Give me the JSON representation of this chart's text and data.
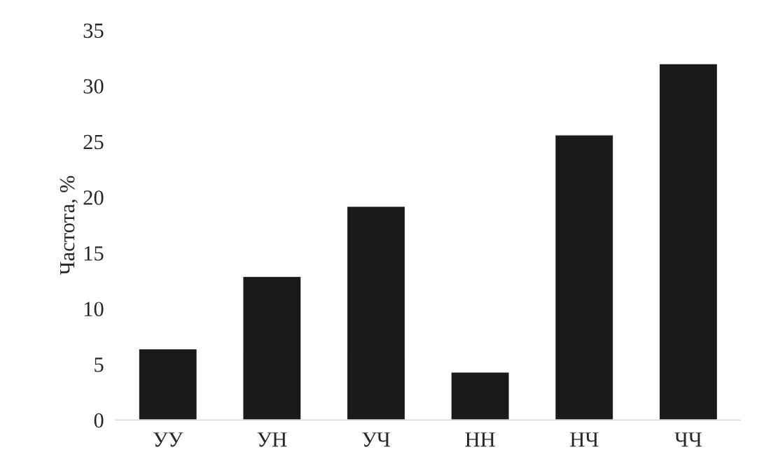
{
  "chart_data": {
    "type": "bar",
    "ylabel": "Частота, %",
    "categories": [
      "УУ",
      "УН",
      "УЧ",
      "НН",
      "НЧ",
      "ЧЧ"
    ],
    "values": [
      6.4,
      12.9,
      19.2,
      4.3,
      25.6,
      32.0
    ],
    "color": "#1a1a1a",
    "ylim": [
      0,
      35
    ],
    "yticks": [
      0,
      5,
      10,
      15,
      20,
      25,
      30,
      35
    ],
    "grid": false,
    "legend": false
  }
}
